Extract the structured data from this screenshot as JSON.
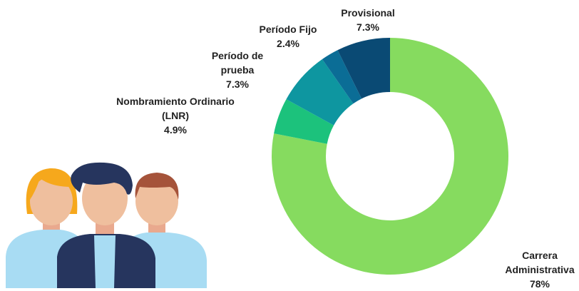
{
  "chart_data": {
    "type": "donut",
    "categories": [
      "Carrera Administrativa",
      "Nombramiento Ordinario (LNR)",
      "Período de prueba",
      "Período Fijo",
      "Provisional"
    ],
    "values": [
      78,
      4.9,
      7.3,
      2.4,
      7.3
    ],
    "value_labels": [
      "78%",
      "4.9%",
      "7.3%",
      "2.4%",
      "7.3%"
    ],
    "colors": [
      "#86db5f",
      "#1cc27c",
      "#0e96a0",
      "#0b6d96",
      "#0a4a74"
    ]
  }
}
